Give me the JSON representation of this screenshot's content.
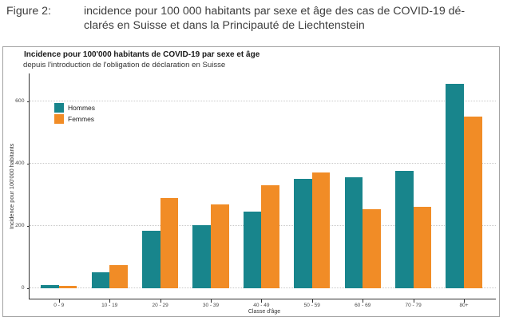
{
  "caption": {
    "label": "Figure 2:",
    "line1": "incidence pour 100 000 habitants par sexe et âge des cas de COVID-19 dé-",
    "line2": "clarés en Suisse et dans la Principauté de Liechtenstein"
  },
  "chart": {
    "title": "Incidence pour 100'000 habitants de COVID-19 par sexe et âge",
    "subtitle": "depuis l'introduction de l'obligation de déclaration en Suisse"
  },
  "chart_data": {
    "type": "bar",
    "title": "Incidence pour 100'000 habitants de COVID-19 par sexe et âge",
    "subtitle": "depuis l'introduction de l'obligation de déclaration en Suisse",
    "categories": [
      "0 - 9",
      "10 - 19",
      "20 - 29",
      "30 - 39",
      "40 - 49",
      "50 - 59",
      "60 - 69",
      "70 - 79",
      "80+"
    ],
    "series": [
      {
        "name": "Hommes",
        "color": "#18858c",
        "values": [
          10,
          50,
          183,
          201,
          246,
          351,
          356,
          376,
          656
        ]
      },
      {
        "name": "Femmes",
        "color": "#f18c26",
        "values": [
          8,
          75,
          290,
          268,
          329,
          370,
          253,
          260,
          550
        ]
      }
    ],
    "xlabel": "Classe d'âge",
    "ylabel": "Incidence pour 100'000 habitants",
    "yticks": [
      0,
      200,
      400,
      600
    ],
    "ylim": [
      -34,
      689
    ],
    "grid": "horizontal-dotted",
    "legend_position": "top-left-inside"
  }
}
